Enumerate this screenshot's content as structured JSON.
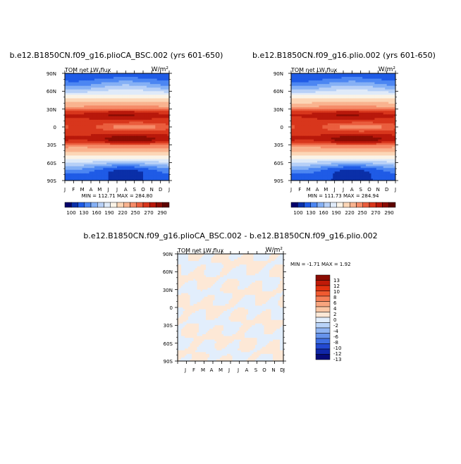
{
  "chart_data": [
    {
      "type": "heatmap",
      "title": "b.e12.B1850CN.f09_g16.plioCA_BSC.002 (yrs 601-650)",
      "subtitle": "TOM net LW flux",
      "units": "W/m²",
      "stats": "MIN = 112.71  MAX = 284.80",
      "x_ticks": [
        "J",
        "F",
        "M",
        "A",
        "M",
        "J",
        "J",
        "A",
        "S",
        "O",
        "N",
        "D",
        "J"
      ],
      "y_ticks": [
        "90N",
        "60N",
        "30N",
        "0",
        "30S",
        "60S",
        "90S"
      ],
      "colorbar_labels": [
        "100",
        "130",
        "160",
        "190",
        "220",
        "250",
        "270",
        "290"
      ],
      "colorbar_colors": [
        "#05006b",
        "#0a2fa8",
        "#1f5be6",
        "#4c86f2",
        "#85b0f5",
        "#b7d0f7",
        "#dfeaf9",
        "#fbf3e6",
        "#fcd6b6",
        "#f9b38f",
        "#f58b68",
        "#ea5d3d",
        "#d8361c",
        "#b8180b",
        "#8b0c03",
        "#5e0300"
      ],
      "value_range": [
        112.71,
        284.8
      ]
    },
    {
      "type": "heatmap",
      "title": "b.e12.B1850CN.f09_g16.plio.002 (yrs 601-650)",
      "subtitle": "TOM net LW flux",
      "units": "W/m²",
      "stats": "MIN = 111.73  MAX = 284.94",
      "x_ticks": [
        "J",
        "F",
        "M",
        "A",
        "M",
        "J",
        "J",
        "A",
        "S",
        "O",
        "N",
        "D",
        "J"
      ],
      "y_ticks": [
        "90N",
        "60N",
        "30N",
        "0",
        "30S",
        "60S",
        "90S"
      ],
      "colorbar_labels": [
        "100",
        "130",
        "160",
        "190",
        "220",
        "250",
        "270",
        "290"
      ],
      "colorbar_colors": [
        "#05006b",
        "#0a2fa8",
        "#1f5be6",
        "#4c86f2",
        "#85b0f5",
        "#b7d0f7",
        "#dfeaf9",
        "#fbf3e6",
        "#fcd6b6",
        "#f9b38f",
        "#f58b68",
        "#ea5d3d",
        "#d8361c",
        "#b8180b",
        "#8b0c03",
        "#5e0300"
      ],
      "value_range": [
        111.73,
        284.94
      ]
    },
    {
      "type": "heatmap",
      "title": "b.e12.B1850CN.f09_g16.plioCA_BSC.002 - b.e12.B1850CN.f09_g16.plio.002",
      "subtitle": "TOM net LW flux",
      "units": "W/m²",
      "stats": "MIN = -1.71 MAX =   1.92",
      "x_ticks": [
        "J",
        "F",
        "M",
        "A",
        "M",
        "J",
        "J",
        "A",
        "S",
        "O",
        "N",
        "D",
        "J"
      ],
      "y_ticks": [
        "90N",
        "60N",
        "30N",
        "0",
        "30S",
        "60S",
        "90S"
      ],
      "colorbar_labels": [
        "13",
        "12",
        "10",
        "8",
        "6",
        "4",
        "2",
        "0",
        "-2",
        "-4",
        "-6",
        "-8",
        "-10",
        "-12",
        "-13"
      ],
      "colorbar_colors": [
        "#8b0c03",
        "#c01a08",
        "#e23210",
        "#f05a30",
        "#f58058",
        "#f8a57e",
        "#fac6a4",
        "#fde8d6",
        "#e2eefc",
        "#b9d3f8",
        "#90b5f3",
        "#6693ec",
        "#3f6fe4",
        "#2349d2",
        "#1027a8",
        "#060a78"
      ],
      "value_range": [
        -1.71,
        1.92
      ]
    }
  ]
}
